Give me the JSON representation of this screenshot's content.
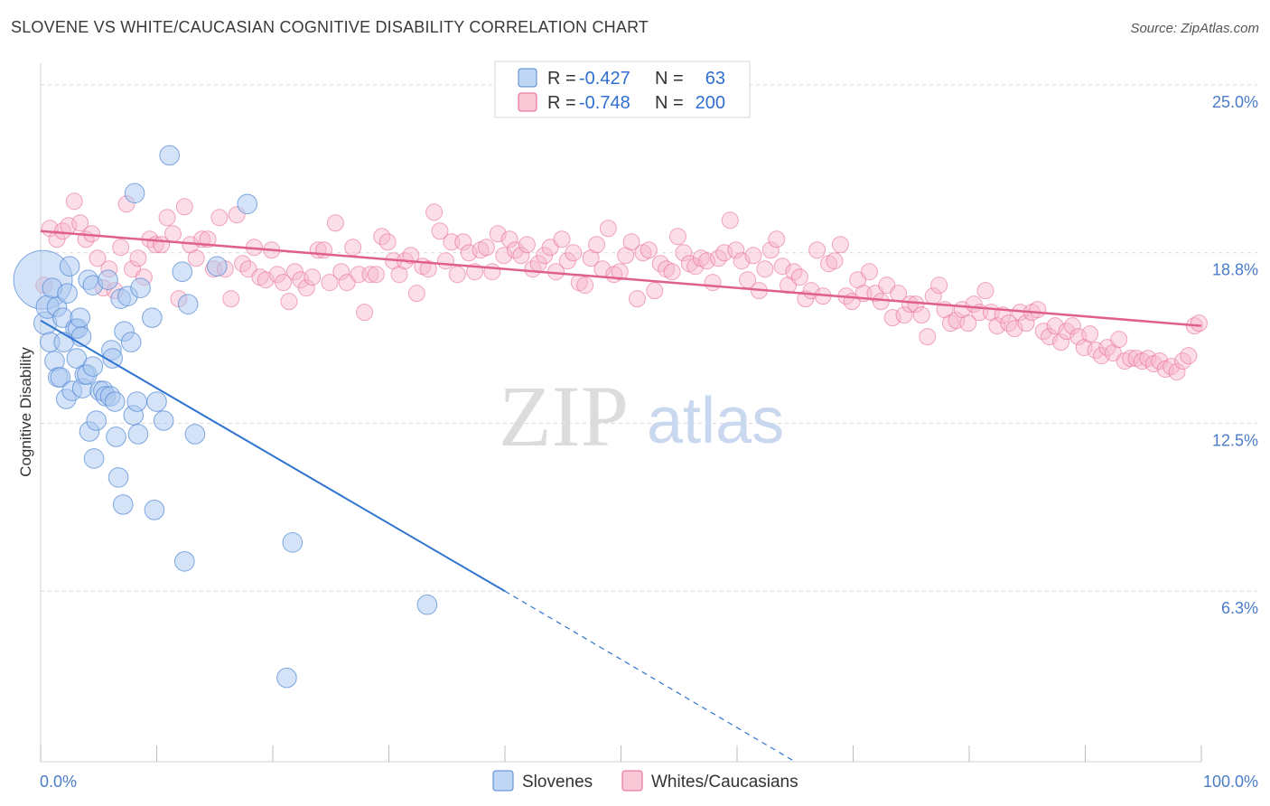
{
  "title": "SLOVENE VS WHITE/CAUCASIAN COGNITIVE DISABILITY CORRELATION CHART",
  "source": "Source: ZipAtlas.com",
  "watermark": {
    "part1": "ZIP",
    "part2": "atlas"
  },
  "colors": {
    "blue": "#4f86d6",
    "blue_fill": "#a9c8f0",
    "blue_line": "#2f74d0",
    "pink": "#e8628f",
    "pink_fill": "#f6b5ca",
    "pink_line": "#e0608c",
    "tick": "#4a7cc9",
    "grid": "#d9d9d9"
  },
  "legend": {
    "rows": [
      {
        "r_label": "R = ",
        "r_value": "-0.427",
        "n_label": "N = ",
        "n_value": "63"
      },
      {
        "r_label": "R = ",
        "r_value": "-0.748",
        "n_label": "N = ",
        "n_value": "200"
      }
    ]
  },
  "bottom_legend": [
    "Slovenes",
    "Whites/Caucasians"
  ],
  "chart_data": {
    "type": "scatter",
    "xlabel": "",
    "ylabel": "Cognitive Disability",
    "xlim": [
      0,
      100
    ],
    "ylim": [
      0,
      25.8
    ],
    "x_tick_labels": [
      "0.0%",
      "100.0%"
    ],
    "y_ticks": [
      6.3,
      12.5,
      18.8,
      25.0
    ],
    "y_tick_labels": [
      "6.3%",
      "12.5%",
      "18.8%",
      "25.0%"
    ],
    "grid": true,
    "legend_position": "top-center",
    "series": [
      {
        "name": "Slovenes",
        "trend": {
          "x": [
            0,
            40
          ],
          "y": [
            16.3,
            6.3
          ],
          "dashed_to": [
            65,
            0
          ]
        },
        "points": [
          [
            0.2,
            17.8,
            3.6
          ],
          [
            0.4,
            16.2,
            1.4
          ],
          [
            0.6,
            16.8,
            1.4
          ],
          [
            0.8,
            15.5,
            1.2
          ],
          [
            1.0,
            17.5,
            1.2
          ],
          [
            1.2,
            14.8,
            1.2
          ],
          [
            1.4,
            16.8,
            1.2
          ],
          [
            1.5,
            14.2,
            1.2
          ],
          [
            1.7,
            14.2,
            1.2
          ],
          [
            1.9,
            16.4,
            1.2
          ],
          [
            2.0,
            15.5,
            1.2
          ],
          [
            2.2,
            13.4,
            1.2
          ],
          [
            2.3,
            17.3,
            1.2
          ],
          [
            2.5,
            18.3,
            1.2
          ],
          [
            2.7,
            13.7,
            1.2
          ],
          [
            3.0,
            16.0,
            1.2
          ],
          [
            3.1,
            14.9,
            1.2
          ],
          [
            3.2,
            16.0,
            1.2
          ],
          [
            3.4,
            16.4,
            1.2
          ],
          [
            3.5,
            15.7,
            1.2
          ],
          [
            3.6,
            13.8,
            1.2
          ],
          [
            3.8,
            14.3,
            1.2
          ],
          [
            4.0,
            14.3,
            1.2
          ],
          [
            4.1,
            17.8,
            1.2
          ],
          [
            4.2,
            12.2,
            1.2
          ],
          [
            4.5,
            17.6,
            1.2
          ],
          [
            4.5,
            14.6,
            1.2
          ],
          [
            4.6,
            11.2,
            1.2
          ],
          [
            4.8,
            12.6,
            1.2
          ],
          [
            5.1,
            13.7,
            1.2
          ],
          [
            5.4,
            13.7,
            1.2
          ],
          [
            5.6,
            13.5,
            1.2
          ],
          [
            5.8,
            17.8,
            1.2
          ],
          [
            6.0,
            13.5,
            1.2
          ],
          [
            6.1,
            15.2,
            1.2
          ],
          [
            6.2,
            14.9,
            1.2
          ],
          [
            6.4,
            13.3,
            1.2
          ],
          [
            6.5,
            12.0,
            1.2
          ],
          [
            6.7,
            10.5,
            1.2
          ],
          [
            6.9,
            17.1,
            1.2
          ],
          [
            7.1,
            9.5,
            1.2
          ],
          [
            7.2,
            15.9,
            1.2
          ],
          [
            7.5,
            17.2,
            1.2
          ],
          [
            7.8,
            15.5,
            1.2
          ],
          [
            8.0,
            12.8,
            1.2
          ],
          [
            8.1,
            21.0,
            1.2
          ],
          [
            8.3,
            13.3,
            1.2
          ],
          [
            8.4,
            12.1,
            1.2
          ],
          [
            8.6,
            17.5,
            1.2
          ],
          [
            9.6,
            16.4,
            1.2
          ],
          [
            9.8,
            9.3,
            1.2
          ],
          [
            10.0,
            13.3,
            1.2
          ],
          [
            10.6,
            12.6,
            1.2
          ],
          [
            11.1,
            22.4,
            1.2
          ],
          [
            12.2,
            18.1,
            1.2
          ],
          [
            12.4,
            7.4,
            1.2
          ],
          [
            12.7,
            16.9,
            1.2
          ],
          [
            13.3,
            12.1,
            1.2
          ],
          [
            15.2,
            18.3,
            1.2
          ],
          [
            17.8,
            20.6,
            1.2
          ],
          [
            21.7,
            8.1,
            1.2
          ],
          [
            21.2,
            3.1,
            1.2
          ],
          [
            33.3,
            5.8,
            1.2
          ]
        ]
      },
      {
        "name": "Whites/Caucasians",
        "trend": {
          "x": [
            0,
            100
          ],
          "y": [
            19.6,
            16.1
          ]
        },
        "points": [
          [
            0.3,
            17.6
          ],
          [
            0.8,
            19.7
          ],
          [
            1.4,
            19.3
          ],
          [
            1.9,
            19.6
          ],
          [
            2.4,
            19.8
          ],
          [
            2.9,
            20.7
          ],
          [
            3.4,
            19.9
          ],
          [
            3.9,
            19.3
          ],
          [
            4.4,
            19.5
          ],
          [
            4.9,
            18.6
          ],
          [
            5.4,
            17.5
          ],
          [
            5.9,
            18.2
          ],
          [
            6.4,
            17.4
          ],
          [
            6.9,
            19.0
          ],
          [
            7.4,
            20.6
          ],
          [
            7.9,
            18.2
          ],
          [
            8.4,
            18.6
          ],
          [
            8.9,
            17.9
          ],
          [
            9.4,
            19.3
          ],
          [
            9.9,
            19.1
          ],
          [
            10.4,
            19.1
          ],
          [
            10.9,
            20.1
          ],
          [
            11.4,
            19.5
          ],
          [
            11.9,
            17.1
          ],
          [
            12.4,
            20.5
          ],
          [
            12.9,
            19.1
          ],
          [
            13.4,
            18.6
          ],
          [
            13.9,
            19.3
          ],
          [
            14.4,
            19.3
          ],
          [
            14.9,
            18.2
          ],
          [
            15.4,
            20.1
          ],
          [
            15.9,
            18.2
          ],
          [
            16.4,
            17.1
          ],
          [
            16.9,
            20.2
          ],
          [
            17.4,
            18.4
          ],
          [
            17.9,
            18.2
          ],
          [
            18.4,
            19.0
          ],
          [
            18.9,
            17.9
          ],
          [
            19.4,
            17.8
          ],
          [
            19.9,
            18.9
          ],
          [
            20.4,
            18.0
          ],
          [
            20.9,
            17.7
          ],
          [
            21.4,
            17.0
          ],
          [
            21.9,
            18.1
          ],
          [
            22.4,
            17.8
          ],
          [
            22.9,
            17.5
          ],
          [
            23.4,
            17.9
          ],
          [
            23.9,
            18.9
          ],
          [
            24.4,
            18.9
          ],
          [
            24.9,
            17.7
          ],
          [
            25.4,
            19.9
          ],
          [
            25.9,
            18.1
          ],
          [
            26.4,
            17.7
          ],
          [
            26.9,
            19.0
          ],
          [
            27.4,
            18.0
          ],
          [
            27.9,
            16.6
          ],
          [
            28.4,
            18.0
          ],
          [
            28.9,
            18.0
          ],
          [
            29.4,
            19.4
          ],
          [
            29.9,
            19.2
          ],
          [
            30.4,
            18.5
          ],
          [
            30.9,
            18.0
          ],
          [
            31.4,
            18.5
          ],
          [
            31.9,
            18.7
          ],
          [
            32.4,
            17.3
          ],
          [
            32.9,
            18.3
          ],
          [
            33.4,
            18.2
          ],
          [
            33.9,
            20.3
          ],
          [
            34.4,
            19.6
          ],
          [
            34.9,
            18.5
          ],
          [
            35.4,
            19.2
          ],
          [
            35.9,
            18.0
          ],
          [
            36.4,
            19.2
          ],
          [
            36.9,
            18.8
          ],
          [
            37.4,
            18.1
          ],
          [
            37.9,
            18.9
          ],
          [
            38.4,
            19.0
          ],
          [
            38.9,
            18.1
          ],
          [
            39.4,
            19.5
          ],
          [
            39.9,
            18.7
          ],
          [
            40.4,
            19.3
          ],
          [
            40.9,
            18.9
          ],
          [
            41.4,
            18.7
          ],
          [
            41.9,
            19.1
          ],
          [
            42.4,
            18.2
          ],
          [
            42.9,
            18.4
          ],
          [
            43.4,
            18.7
          ],
          [
            43.9,
            19.0
          ],
          [
            44.4,
            18.1
          ],
          [
            44.9,
            19.3
          ],
          [
            45.4,
            18.5
          ],
          [
            45.9,
            18.8
          ],
          [
            46.4,
            17.7
          ],
          [
            46.9,
            17.6
          ],
          [
            47.4,
            18.6
          ],
          [
            47.9,
            19.1
          ],
          [
            48.4,
            18.2
          ],
          [
            48.9,
            19.7
          ],
          [
            49.4,
            18.0
          ],
          [
            49.9,
            18.1
          ],
          [
            50.4,
            18.7
          ],
          [
            50.9,
            19.2
          ],
          [
            51.4,
            17.1
          ],
          [
            51.9,
            18.8
          ],
          [
            52.4,
            18.9
          ],
          [
            52.9,
            17.4
          ],
          [
            53.4,
            18.4
          ],
          [
            53.9,
            18.2
          ],
          [
            54.4,
            18.1
          ],
          [
            54.9,
            19.4
          ],
          [
            55.4,
            18.8
          ],
          [
            55.9,
            18.4
          ],
          [
            56.4,
            18.3
          ],
          [
            56.9,
            18.6
          ],
          [
            57.4,
            18.5
          ],
          [
            57.9,
            17.7
          ],
          [
            58.4,
            18.6
          ],
          [
            58.9,
            18.8
          ],
          [
            59.4,
            20.0
          ],
          [
            59.9,
            18.9
          ],
          [
            60.4,
            18.5
          ],
          [
            60.9,
            17.8
          ],
          [
            61.4,
            18.7
          ],
          [
            61.9,
            17.4
          ],
          [
            62.4,
            18.2
          ],
          [
            62.9,
            18.9
          ],
          [
            63.4,
            19.3
          ],
          [
            63.9,
            18.3
          ],
          [
            64.4,
            17.6
          ],
          [
            64.9,
            18.1
          ],
          [
            65.4,
            17.9
          ],
          [
            65.9,
            17.1
          ],
          [
            66.4,
            17.4
          ],
          [
            66.9,
            18.9
          ],
          [
            67.4,
            17.2
          ],
          [
            67.9,
            18.4
          ],
          [
            68.4,
            18.5
          ],
          [
            68.9,
            19.1
          ],
          [
            69.4,
            17.2
          ],
          [
            69.9,
            17.0
          ],
          [
            70.4,
            17.8
          ],
          [
            70.9,
            17.3
          ],
          [
            71.4,
            18.1
          ],
          [
            71.9,
            17.3
          ],
          [
            72.4,
            17.0
          ],
          [
            72.9,
            17.6
          ],
          [
            73.4,
            16.4
          ],
          [
            73.9,
            17.3
          ],
          [
            74.4,
            16.5
          ],
          [
            74.9,
            16.9
          ],
          [
            75.4,
            16.9
          ],
          [
            75.9,
            16.5
          ],
          [
            76.4,
            15.7
          ],
          [
            76.9,
            17.2
          ],
          [
            77.4,
            17.6
          ],
          [
            77.9,
            16.7
          ],
          [
            78.4,
            16.2
          ],
          [
            78.9,
            16.3
          ],
          [
            79.4,
            16.7
          ],
          [
            79.9,
            16.2
          ],
          [
            80.4,
            16.9
          ],
          [
            80.9,
            16.6
          ],
          [
            81.4,
            17.4
          ],
          [
            81.9,
            16.6
          ],
          [
            82.4,
            16.1
          ],
          [
            82.9,
            16.5
          ],
          [
            83.4,
            16.2
          ],
          [
            83.9,
            16.0
          ],
          [
            84.4,
            16.6
          ],
          [
            84.9,
            16.2
          ],
          [
            85.4,
            16.6
          ],
          [
            85.9,
            16.7
          ],
          [
            86.4,
            15.9
          ],
          [
            86.9,
            15.7
          ],
          [
            87.4,
            16.1
          ],
          [
            87.9,
            15.5
          ],
          [
            88.4,
            15.9
          ],
          [
            88.9,
            16.1
          ],
          [
            89.4,
            15.7
          ],
          [
            89.9,
            15.3
          ],
          [
            90.4,
            15.8
          ],
          [
            90.9,
            15.2
          ],
          [
            91.4,
            15.0
          ],
          [
            91.9,
            15.3
          ],
          [
            92.4,
            15.1
          ],
          [
            92.9,
            15.6
          ],
          [
            93.4,
            14.8
          ],
          [
            93.9,
            14.9
          ],
          [
            94.4,
            14.9
          ],
          [
            94.9,
            14.8
          ],
          [
            95.4,
            14.9
          ],
          [
            95.9,
            14.7
          ],
          [
            96.4,
            14.8
          ],
          [
            96.9,
            14.5
          ],
          [
            97.4,
            14.6
          ],
          [
            97.9,
            14.4
          ],
          [
            98.4,
            14.8
          ],
          [
            98.9,
            15.0
          ],
          [
            99.4,
            16.1
          ],
          [
            99.8,
            16.2
          ]
        ]
      }
    ]
  }
}
